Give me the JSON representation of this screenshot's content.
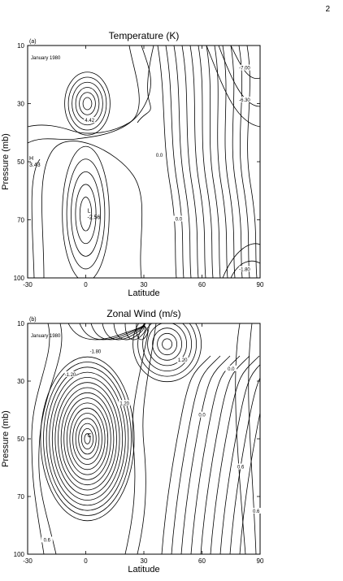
{
  "page_number": "2",
  "chart_data": [
    {
      "type": "contour",
      "panel_label": "(a)",
      "title": "Temperature (K)",
      "date_label": "January 1980",
      "xlabel": "Latitude",
      "ylabel": "Pressure (mb)",
      "xlim": [
        -30,
        90
      ],
      "x_ticks": [
        "-30",
        "0",
        "30",
        "60",
        "90"
      ],
      "y_ticks": [
        "10",
        "30",
        "50",
        "70",
        "100"
      ],
      "extrema": [
        {
          "marker": "H",
          "value": "3.43",
          "lat": -30,
          "p": 50
        },
        {
          "marker": "L",
          "value": "-2.56",
          "lat": 0,
          "p": 68
        }
      ],
      "contour_labels": [
        {
          "text": "-7.00",
          "lat": 82,
          "p": 18
        },
        {
          "text": "-6.30",
          "lat": 82,
          "p": 29
        },
        {
          "text": "-1.80",
          "lat": 82,
          "p": 96
        },
        {
          "text": "4.42",
          "lat": 2,
          "p": 36
        },
        {
          "text": "0.0",
          "lat": 38,
          "p": 48
        },
        {
          "text": "0.0",
          "lat": 48,
          "p": 70
        }
      ]
    },
    {
      "type": "contour",
      "panel_label": "(b)",
      "title": "Zonal Wind (m/s)",
      "date_label": "January 1980",
      "xlabel": "Latitude",
      "ylabel": "Pressure (mb)",
      "xlim": [
        -30,
        90
      ],
      "x_ticks": [
        "-30",
        "0",
        "30",
        "60",
        "90"
      ],
      "y_ticks": [
        "10",
        "30",
        "50",
        "70",
        "100"
      ],
      "extrema": [
        {
          "marker": "C",
          "value": "",
          "lat": 0,
          "p": 50
        }
      ],
      "contour_labels": [
        {
          "text": "-1.80",
          "lat": 5,
          "p": 20
        },
        {
          "text": "-1.20",
          "lat": -8,
          "p": 28
        },
        {
          "text": "1.20",
          "lat": 50,
          "p": 23
        },
        {
          "text": "0.0",
          "lat": 75,
          "p": 26
        },
        {
          "text": "0.0",
          "lat": 60,
          "p": 42
        },
        {
          "text": "0.6",
          "lat": 80,
          "p": 60
        },
        {
          "text": "0.6",
          "lat": 88,
          "p": 78
        },
        {
          "text": "0.6",
          "lat": -20,
          "p": 93
        },
        {
          "text": "1.20",
          "lat": 20,
          "p": 38
        }
      ]
    }
  ]
}
